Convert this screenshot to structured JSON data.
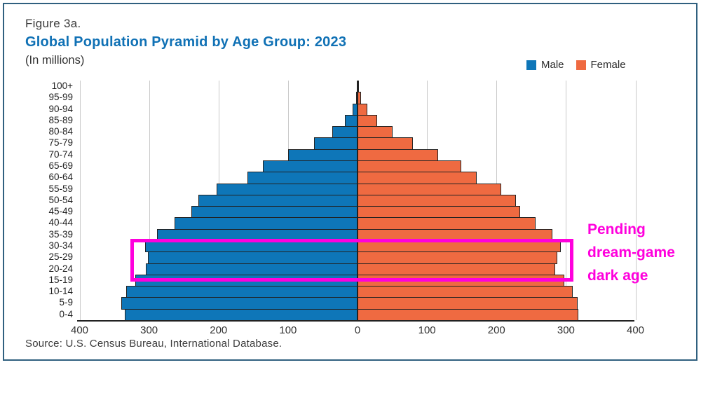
{
  "figure": {
    "label": "Figure 3a.",
    "title": "Global Population Pyramid by Age Group: 2023",
    "subtitle": "(In millions)",
    "source": "Source: U.S. Census Bureau, International Database."
  },
  "legend": [
    {
      "label": "Male",
      "color": "#0e76b8"
    },
    {
      "label": "Female",
      "color": "#ef6a41"
    }
  ],
  "annotation": {
    "lines": [
      "Pending",
      "dream-game",
      "dark age"
    ],
    "color": "#ff00dd",
    "box_color": "#ff00dd"
  },
  "colors": {
    "male": "#0e76b8",
    "female": "#ef6a41",
    "title_blue": "#1071b5",
    "bar_outline": "#222222",
    "gridline": "#c9c9c9",
    "frame_border": "#30607f",
    "magenta": "#ff00dd"
  },
  "chart_data": {
    "type": "bar",
    "subtype": "population-pyramid",
    "title": "Global Population Pyramid by Age Group: 2023",
    "units": "millions",
    "categories": [
      "100+",
      "95-99",
      "90-94",
      "85-89",
      "80-84",
      "75-79",
      "70-74",
      "65-69",
      "60-64",
      "55-59",
      "50-54",
      "45-49",
      "40-44",
      "35-39",
      "30-34",
      "25-29",
      "20-24",
      "15-19",
      "10-14",
      "5-9",
      "0-4"
    ],
    "series": [
      {
        "name": "Male",
        "side": "left",
        "color": "#0e76b8",
        "values": [
          1,
          2,
          7,
          18,
          36,
          63,
          100,
          136,
          158,
          203,
          229,
          239,
          263,
          289,
          306,
          302,
          305,
          320,
          333,
          340,
          335
        ]
      },
      {
        "name": "Female",
        "side": "right",
        "color": "#ef6a41",
        "values": [
          1,
          5,
          14,
          28,
          50,
          80,
          116,
          149,
          171,
          207,
          228,
          234,
          256,
          280,
          293,
          288,
          284,
          298,
          310,
          317,
          318
        ]
      }
    ],
    "x_axis_ticks": [
      "400",
      "300",
      "200",
      "100",
      "0",
      "100",
      "200",
      "300",
      "400"
    ],
    "xlim_each_side": 400,
    "grid": true,
    "legend_position": "top-right"
  }
}
